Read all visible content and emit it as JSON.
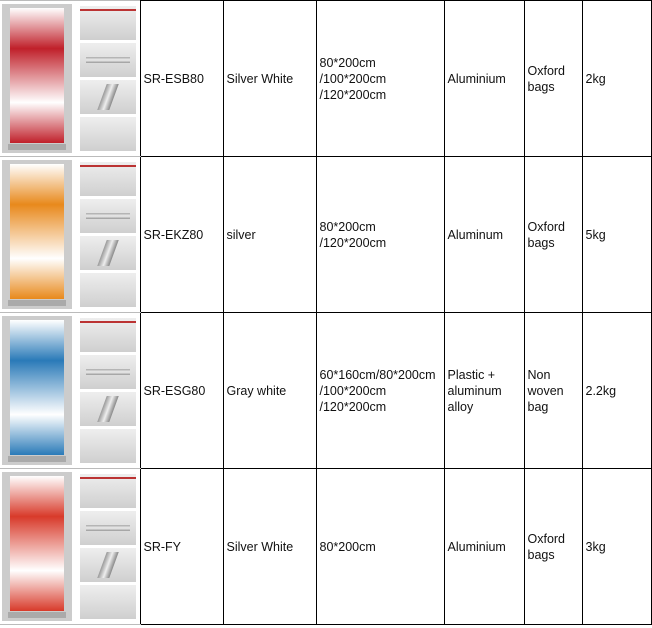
{
  "rows": [
    {
      "model": "SR-ESB80",
      "color": "Silver White",
      "size": "80*200cm\n/100*200cm\n/120*200cm",
      "material": "Aluminium",
      "bag": "Oxford\nbags",
      "weight": "2kg",
      "banner_color": "#c0202a"
    },
    {
      "model": "SR-EKZ80",
      "color": "silver",
      "size": "80*200cm\n/120*200cm",
      "material": "Aluminum",
      "bag": "Oxford\nbags",
      "weight": "5kg",
      "banner_color": "#e8891c"
    },
    {
      "model": "SR-ESG80",
      "color": "Gray white",
      "size": "60*160cm/80*200cm\n/100*200cm\n/120*200cm",
      "material": "Plastic +\naluminum\nalloy",
      "bag": "Non\nwoven\nbag",
      "weight": "2.2kg",
      "banner_color": "#2a7ab8"
    },
    {
      "model": "SR-FY",
      "color": "Silver White",
      "size": "80*200cm",
      "material": "Aluminium",
      "bag": "Oxford\nbags",
      "weight": "3kg",
      "banner_color": "#d83a2a"
    }
  ]
}
